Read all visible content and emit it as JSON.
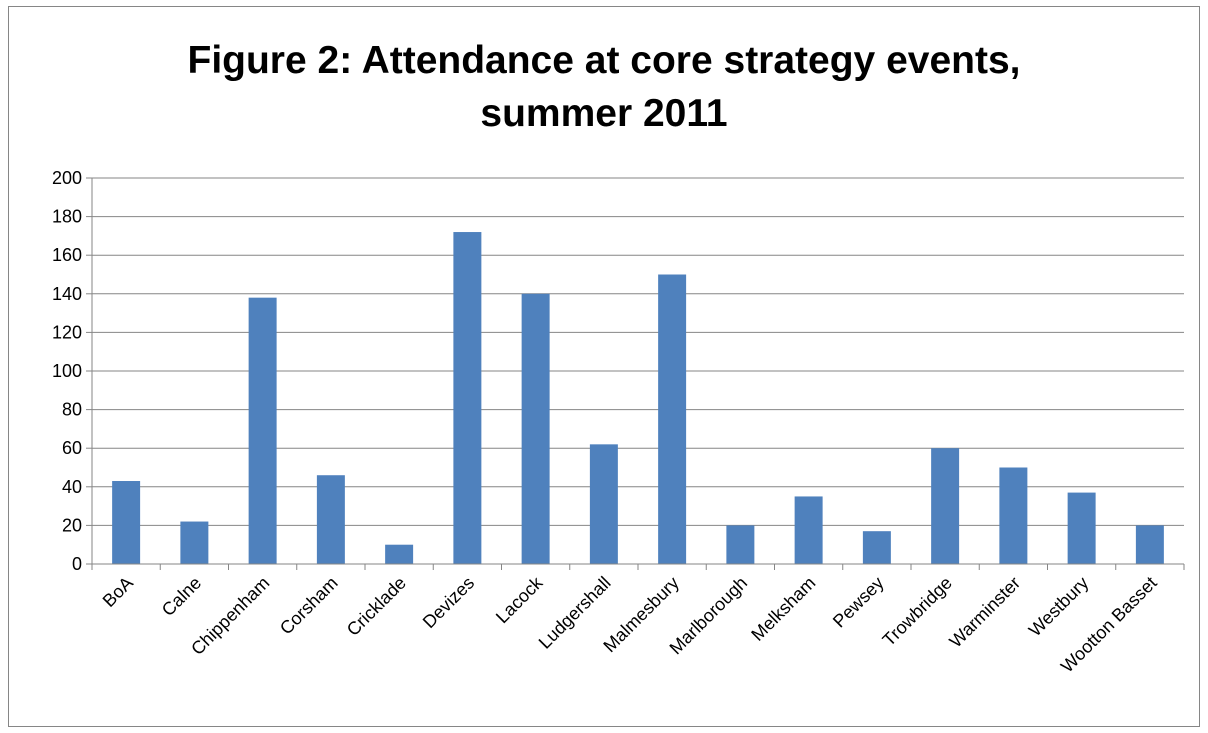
{
  "chart_data": {
    "type": "bar",
    "title_lines": [
      "Figure 2: Attendance at core strategy events,",
      "summer 2011"
    ],
    "categories": [
      "BoA",
      "Calne",
      "Chippenham",
      "Corsham",
      "Cricklade",
      "Devizes",
      "Lacock",
      "Ludgershall",
      "Malmesbury",
      "Marlborough",
      "Melksham",
      "Pewsey",
      "Trowbridge",
      "Warminster",
      "Westbury",
      "Wootton Basset"
    ],
    "values": [
      43,
      22,
      138,
      46,
      10,
      172,
      140,
      62,
      150,
      20,
      35,
      17,
      60,
      50,
      37,
      20
    ],
    "ylim": [
      0,
      200
    ],
    "yticks": [
      0,
      20,
      40,
      60,
      80,
      100,
      120,
      140,
      160,
      180,
      200
    ],
    "grid": true,
    "legend": "none",
    "bar_color": "#4F81BD"
  }
}
